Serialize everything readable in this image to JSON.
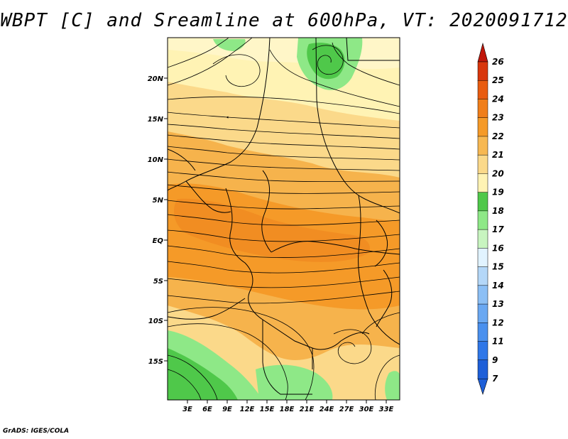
{
  "title": "WBPT [C] and Sreamline at 600hPa, VT: 2020091712",
  "credit": "GrADS: IGES/COLA",
  "map": {
    "lat_labels": [
      "20N",
      "15N",
      "10N",
      "5N",
      "EQ",
      "5S",
      "10S",
      "15S"
    ],
    "lon_labels": [
      "3E",
      "6E",
      "9E",
      "12E",
      "15E",
      "18E",
      "21E",
      "24E",
      "27E",
      "30E",
      "33E"
    ]
  },
  "colorbar": {
    "labels": [
      "7",
      "9",
      "11",
      "12",
      "13",
      "14",
      "15",
      "16",
      "17",
      "18",
      "19",
      "20",
      "21",
      "22",
      "23",
      "24",
      "25",
      "26"
    ],
    "colors": [
      "#1e5fd8",
      "#2f77e8",
      "#4a90ee",
      "#6aa8f2",
      "#8cbff5",
      "#b4d7f8",
      "#e1f3ff",
      "#c8f5c0",
      "#8ee887",
      "#4fc84a",
      "#fff3b4",
      "#fbd98a",
      "#f7b852",
      "#f59a28",
      "#f07e1a",
      "#e85c10",
      "#d8360c",
      "#c0160a"
    ]
  }
}
